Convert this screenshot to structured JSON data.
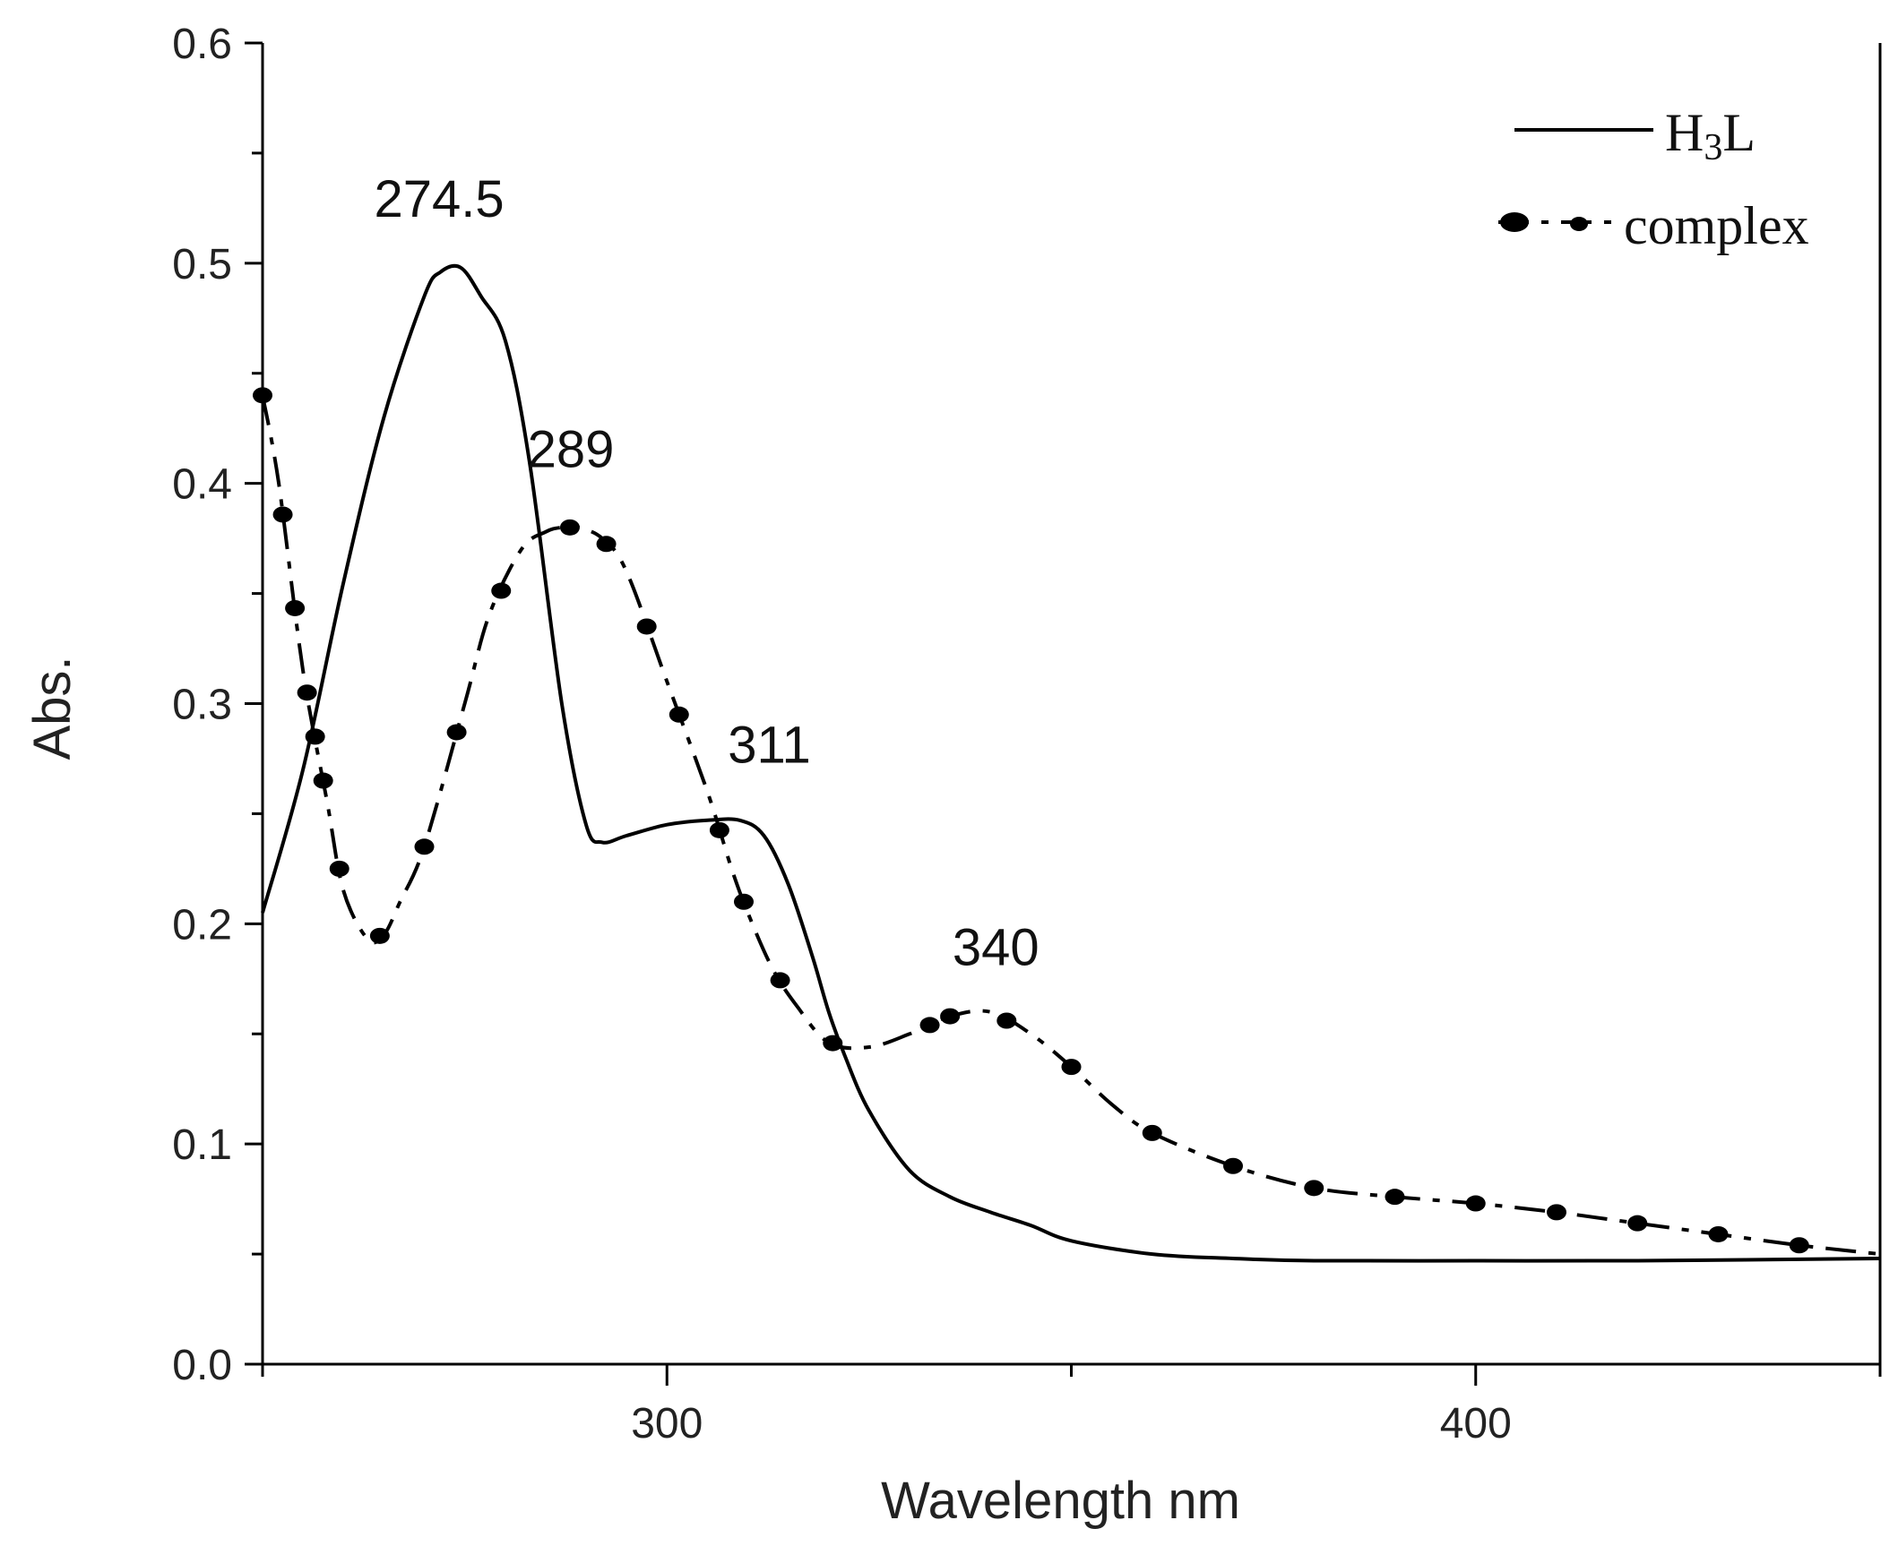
{
  "chart_data": {
    "type": "line",
    "title": "",
    "xlabel": "Wavelength nm",
    "ylabel": "Abs.",
    "xlim": [
      250,
      450
    ],
    "ylim": [
      0.0,
      0.6
    ],
    "x_major_ticks": [
      300,
      400
    ],
    "x_minor_ticks": [
      250,
      350,
      450
    ],
    "y_ticks": [
      0.0,
      0.1,
      0.2,
      0.3,
      0.4,
      0.5,
      0.6
    ],
    "y_tick_labels": [
      "0.0",
      "0.1",
      "0.2",
      "0.3",
      "0.4",
      "0.5",
      "0.6"
    ],
    "x_tick_labels": [
      "300",
      "400"
    ],
    "grid": false,
    "legend_position": "top-right",
    "series": [
      {
        "name": "H3L",
        "name_main": "H",
        "name_sub": "3",
        "name_end": "L",
        "style": "solid",
        "x": [
          250,
          255,
          260,
          265,
          270,
          272,
          274.5,
          277,
          280,
          283,
          287,
          290,
          292,
          295,
          300,
          305,
          309,
          312,
          315,
          318,
          320,
          322,
          325,
          330,
          335,
          340,
          345,
          350,
          360,
          370,
          380,
          400,
          420,
          450
        ],
        "y": [
          0.205,
          0.27,
          0.355,
          0.43,
          0.485,
          0.496,
          0.498,
          0.485,
          0.465,
          0.41,
          0.3,
          0.245,
          0.237,
          0.24,
          0.245,
          0.247,
          0.247,
          0.24,
          0.218,
          0.185,
          0.16,
          0.14,
          0.115,
          0.088,
          0.076,
          0.069,
          0.063,
          0.056,
          0.05,
          0.048,
          0.047,
          0.047,
          0.047,
          0.048
        ]
      },
      {
        "name": "complex",
        "style": "dash-dot with dot markers",
        "x": [
          250,
          252,
          255,
          258,
          260,
          263,
          265,
          267,
          270,
          275,
          278,
          282,
          285,
          287,
          289,
          292,
          295,
          300,
          305,
          308,
          310,
          313,
          316,
          320,
          325,
          330,
          335,
          340,
          345,
          350,
          355,
          360,
          370,
          380,
          390,
          400,
          410,
          420,
          430,
          440,
          450
        ],
        "y": [
          0.44,
          0.4,
          0.315,
          0.255,
          0.215,
          0.193,
          0.195,
          0.21,
          0.235,
          0.3,
          0.34,
          0.37,
          0.378,
          0.38,
          0.38,
          0.375,
          0.36,
          0.31,
          0.26,
          0.225,
          0.205,
          0.18,
          0.163,
          0.146,
          0.144,
          0.15,
          0.158,
          0.16,
          0.15,
          0.135,
          0.118,
          0.105,
          0.09,
          0.08,
          0.076,
          0.073,
          0.069,
          0.064,
          0.059,
          0.054,
          0.05
        ]
      }
    ],
    "marker_x": [
      250,
      252.5,
      254,
      255.5,
      256.5,
      257.5,
      259.5,
      264.5,
      270,
      274,
      279.5,
      288,
      292.5,
      297.5,
      301.5,
      306.5,
      309.5,
      314,
      320.5,
      332.5,
      335,
      342,
      350,
      360,
      370,
      380,
      390,
      400,
      410,
      420,
      430,
      440
    ],
    "annotations": [
      {
        "text": "274.5",
        "x": 274.5,
        "y": 0.5
      },
      {
        "text": "289",
        "x": 289,
        "y": 0.383
      },
      {
        "text": "311",
        "x": 311,
        "y": 0.248
      },
      {
        "text": "340",
        "x": 340,
        "y": 0.16
      }
    ]
  }
}
